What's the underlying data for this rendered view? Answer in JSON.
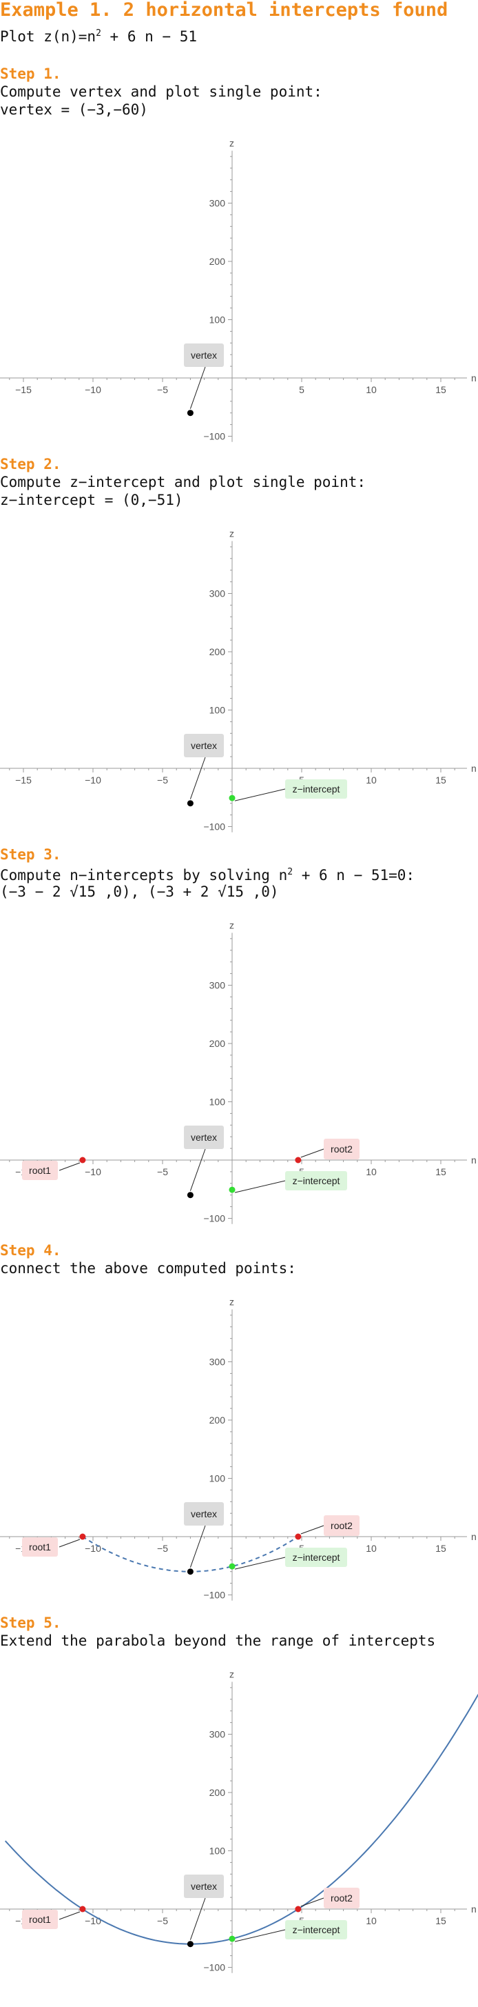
{
  "title": "Example 1. 2 horizontal intercepts found",
  "plot_line": {
    "prefix": "Plot ",
    "fn": "z(n)=n",
    "exp": "2",
    "rest": " + 6 n − 51"
  },
  "steps": [
    {
      "label": "Step 1.",
      "lines": [
        "Compute vertex and plot single point:",
        "vertex = (−3,−60)"
      ]
    },
    {
      "label": "Step 2.",
      "lines": [
        "Compute z−intercept and plot single point:",
        "z−intercept = (0,−51)"
      ]
    },
    {
      "label": "Step 3.",
      "lines_html": true,
      "line1_pre": "Compute n−intercepts by solving n",
      "line1_exp": "2",
      "line1_post": " + 6 n − 51=0:",
      "line2": "(−3 − 2 √15 ,0),   (−3 + 2 √15 ,0)"
    },
    {
      "label": "Step 4.",
      "lines": [
        "connect the above computed points:"
      ]
    },
    {
      "label": "Step 5.",
      "lines": [
        "Extend the parabola beyond the range of intercepts"
      ]
    }
  ],
  "axis": {
    "xlabel": "n",
    "ylabel": "z",
    "x_ticks": [
      -15,
      -10,
      -5,
      5,
      10,
      15
    ],
    "x_tick_labels": [
      "−15",
      "−10",
      "−5",
      "5",
      "10",
      "15"
    ],
    "y_ticks": [
      -100,
      100,
      200,
      300
    ],
    "y_tick_labels": [
      "−100",
      "100",
      "200",
      "300"
    ]
  },
  "labels": {
    "vertex": "vertex",
    "z_intercept": "z−intercept",
    "root1": "root1",
    "root2": "root2"
  },
  "colors": {
    "accent": "#f08c1e",
    "curve": "#4a78b0",
    "vertex_point": "#000000",
    "z_point": "#33dd33",
    "root_point": "#dd2222",
    "vertex_box": "#dcdcdc",
    "z_box": "#dcf5dc",
    "root_box": "#fadcdc"
  },
  "chart_data": [
    {
      "type": "scatter",
      "panel": 1,
      "xlim": [
        -17,
        17
      ],
      "ylim": [
        -105,
        390
      ],
      "points": [
        {
          "name": "vertex",
          "x": -3,
          "y": -60
        }
      ]
    },
    {
      "type": "scatter",
      "panel": 2,
      "xlim": [
        -17,
        17
      ],
      "ylim": [
        -105,
        390
      ],
      "points": [
        {
          "name": "vertex",
          "x": -3,
          "y": -60
        },
        {
          "name": "z-intercept",
          "x": 0,
          "y": -51
        }
      ]
    },
    {
      "type": "scatter",
      "panel": 3,
      "xlim": [
        -17,
        17
      ],
      "ylim": [
        -105,
        390
      ],
      "points": [
        {
          "name": "vertex",
          "x": -3,
          "y": -60
        },
        {
          "name": "z-intercept",
          "x": 0,
          "y": -51
        },
        {
          "name": "root1",
          "x": -10.746,
          "y": 0
        },
        {
          "name": "root2",
          "x": 4.746,
          "y": 0
        }
      ]
    },
    {
      "type": "line",
      "panel": 4,
      "xlim": [
        -17,
        17
      ],
      "ylim": [
        -105,
        390
      ],
      "function": "n^2 + 6n - 51",
      "domain": [
        -10.746,
        4.746
      ],
      "style": "dashed",
      "points": [
        {
          "name": "vertex",
          "x": -3,
          "y": -60
        },
        {
          "name": "z-intercept",
          "x": 0,
          "y": -51
        },
        {
          "name": "root1",
          "x": -10.746,
          "y": 0
        },
        {
          "name": "root2",
          "x": 4.746,
          "y": 0
        }
      ]
    },
    {
      "type": "line",
      "panel": 5,
      "xlim": [
        -17,
        17
      ],
      "ylim": [
        -105,
        390
      ],
      "function": "n^2 + 6n - 51",
      "domain": [
        -16.3,
        17.7
      ],
      "style": "solid",
      "points": [
        {
          "name": "vertex",
          "x": -3,
          "y": -60
        },
        {
          "name": "z-intercept",
          "x": 0,
          "y": -51
        },
        {
          "name": "root1",
          "x": -10.746,
          "y": 0
        },
        {
          "name": "root2",
          "x": 4.746,
          "y": 0
        }
      ]
    }
  ]
}
